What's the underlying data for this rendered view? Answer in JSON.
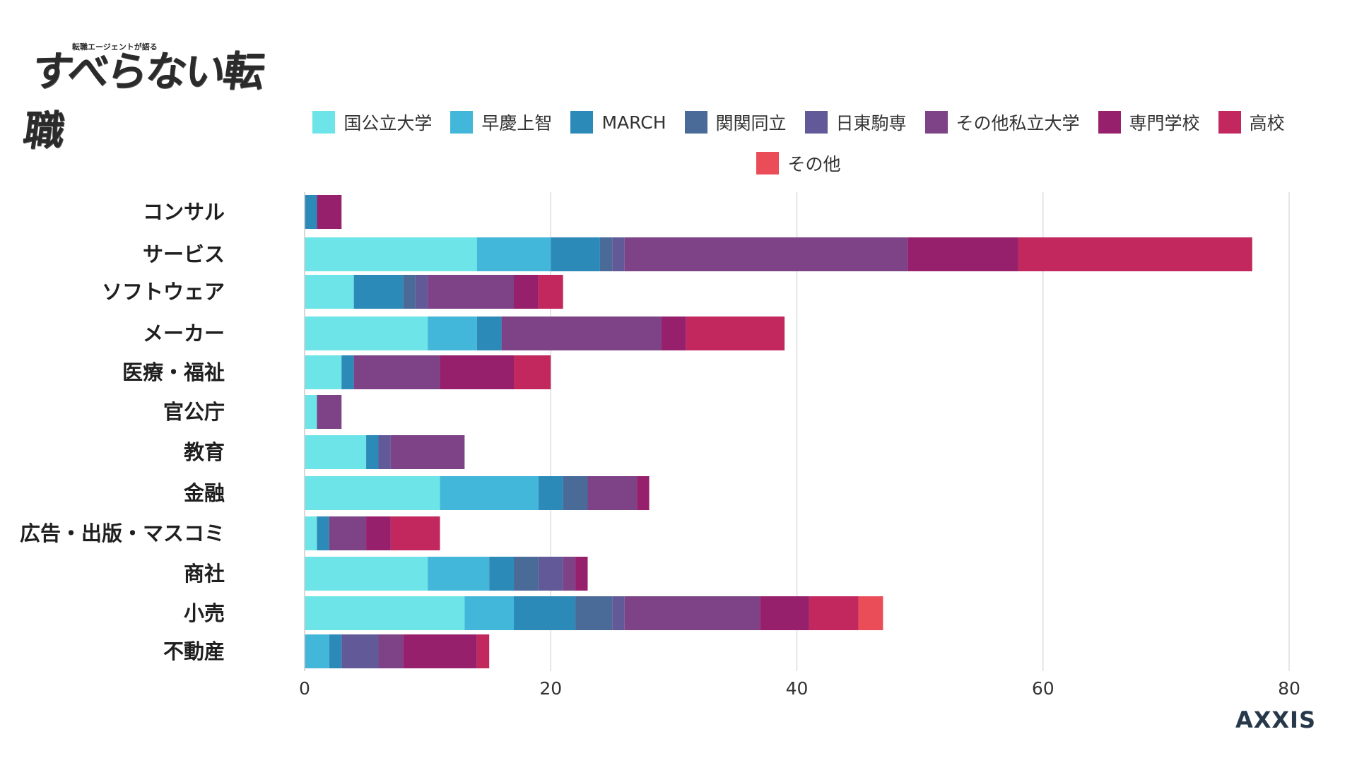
{
  "logo": {
    "subtitle": "転職エージェントが語る",
    "title": "すべらない転職"
  },
  "brand": "AXXIS",
  "chart_data": {
    "type": "bar",
    "orientation": "horizontal",
    "stacked": true,
    "categories": [
      "コンサル",
      "サービス",
      "ソフトウェア",
      "メーカー",
      "医療・福祉",
      "官公庁",
      "教育",
      "金融",
      "広告・出版・マスコミ",
      "商社",
      "小売",
      "不動産"
    ],
    "series": [
      {
        "name": "国公立大学",
        "color": "#6ce4e8",
        "values": [
          0,
          14,
          4,
          10,
          3,
          1,
          5,
          11,
          1,
          10,
          13,
          0
        ]
      },
      {
        "name": "早慶上智",
        "color": "#43b7d9",
        "values": [
          0,
          6,
          0,
          4,
          0,
          0,
          0,
          8,
          0,
          5,
          4,
          2
        ]
      },
      {
        "name": "MARCH",
        "color": "#2c8ab8",
        "values": [
          1,
          4,
          4,
          2,
          1,
          0,
          1,
          2,
          1,
          2,
          5,
          1
        ]
      },
      {
        "name": "関関同立",
        "color": "#4a6a98",
        "values": [
          0,
          1,
          1,
          0,
          0,
          0,
          0,
          2,
          0,
          2,
          3,
          0
        ]
      },
      {
        "name": "日東駒専",
        "color": "#625a98",
        "values": [
          0,
          1,
          1,
          0,
          0,
          0,
          1,
          0,
          0,
          2,
          1,
          3
        ]
      },
      {
        "name": "その他私立大学",
        "color": "#7e4286",
        "values": [
          0,
          23,
          7,
          13,
          7,
          2,
          6,
          4,
          3,
          1,
          11,
          2
        ]
      },
      {
        "name": "専門学校",
        "color": "#96206c",
        "values": [
          2,
          9,
          2,
          2,
          6,
          0,
          0,
          1,
          2,
          1,
          4,
          6
        ]
      },
      {
        "name": "高校",
        "color": "#c2285e",
        "values": [
          0,
          19,
          2,
          8,
          3,
          0,
          0,
          0,
          4,
          0,
          4,
          1
        ]
      },
      {
        "name": "その他",
        "color": "#ea4d58",
        "values": [
          0,
          0,
          0,
          0,
          0,
          0,
          0,
          0,
          0,
          0,
          2,
          0
        ]
      }
    ],
    "x_ticks": [
      0,
      20,
      40,
      60,
      80
    ],
    "xlim": [
      0,
      80
    ],
    "grid": true,
    "legend_position": "top"
  }
}
